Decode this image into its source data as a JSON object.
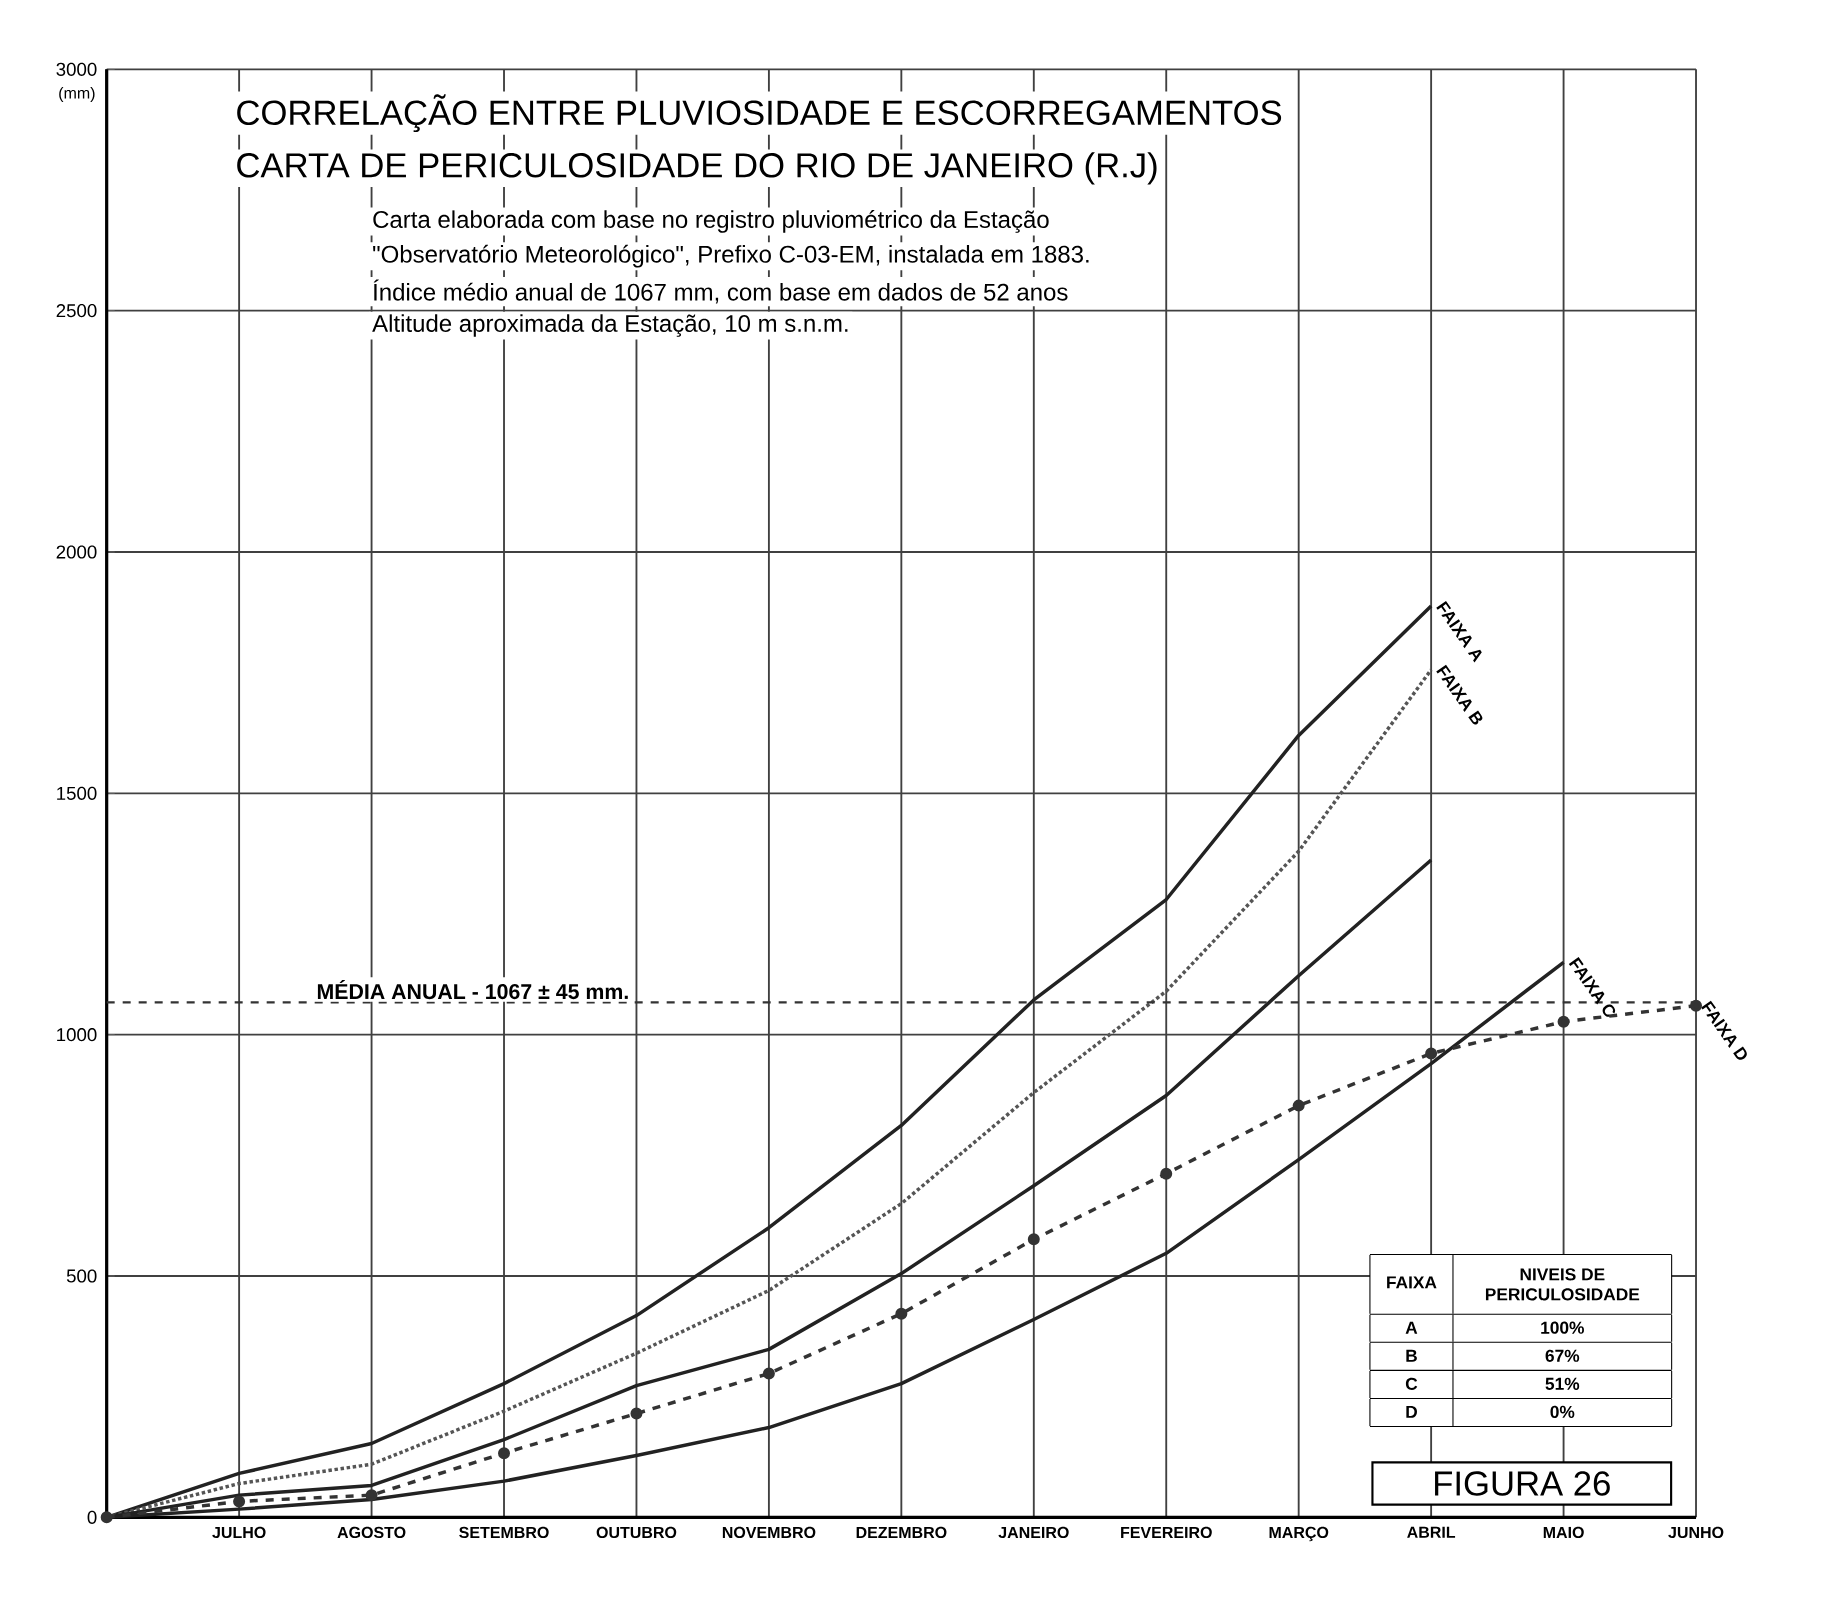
{
  "chart_data": {
    "type": "line",
    "title": "CORRELAÇÃO ENTRE PLUVIOSIDADE E ESCORREGAMENTOS",
    "subtitle": "CARTA DE PERICULOSIDADE DO RIO DE JANEIRO (R.J)",
    "ylabel": "(mm)",
    "categories": [
      null,
      "JULHO",
      "AGOSTO",
      "SETEMBRO",
      "OUTUBRO",
      "NOVEMBRO",
      "DEZEMBRO",
      "JANEIRO",
      "FEVEREIRO",
      "MARÇO",
      "ABRIL",
      "MAIO",
      "JUNHO"
    ],
    "ylim": [
      0,
      3000
    ],
    "yticks": [
      0,
      500,
      1000,
      1500,
      2000,
      2500,
      3000
    ],
    "grid": true,
    "series": [
      {
        "color": "#222222",
        "line_style": "solid",
        "marker": "none",
        "values": [
          0,
          91,
          153,
          277,
          418,
          600,
          812,
          1072,
          1280,
          1620,
          1888,
          null,
          null
        ]
      },
      {
        "color": "#555555",
        "line_style": "dotted",
        "marker": "none",
        "values": [
          0,
          70,
          110,
          220,
          340,
          470,
          650,
          880,
          1090,
          1380,
          1756,
          null,
          null
        ]
      },
      {
        "color": "#222222",
        "line_style": "solid",
        "marker": "none",
        "values": [
          0,
          46,
          66,
          161,
          273,
          348,
          505,
          687,
          874,
          1122,
          1362,
          null,
          null
        ]
      },
      {
        "color": "#222222",
        "line_style": "solid",
        "marker": "none",
        "values": [
          0,
          17,
          37,
          75,
          128,
          186,
          277,
          410,
          547,
          741,
          940,
          1150,
          null
        ]
      },
      {
        "color": "#333333",
        "line_style": "dashed",
        "marker": "circle",
        "values": [
          0,
          33,
          46,
          133,
          215,
          298,
          422,
          576,
          712,
          853,
          961,
          1027,
          1060
        ]
      }
    ],
    "ref_lines": [
      {
        "axis": "y",
        "value": 1067,
        "label": "MÉDIA ANUAL - 1067 ± 45 mm.",
        "color": "#333333",
        "line_style": "dashed"
      }
    ],
    "annotations": [
      "Carta elaborada com base no registro pluviométrico da Estação",
      "\"Observatório Meteorológico\", Prefixo C-03-EM, instalada em 1883.",
      "Índice médio anual de 1067 mm, com base em dados de 52 anos",
      "Altitude aproximada da Estação, 10 m s.n.m.",
      "FAIXA",
      "NIVEIS DE PERICULOSIDADE",
      "A",
      "100%",
      "B",
      "67%",
      "C",
      "51%",
      "D",
      "0%",
      "FIGURA 26",
      {
        "text": "FAIXA A",
        "x": "ABRIL",
        "y": 1888
      },
      {
        "text": "FAIXA B",
        "x": "ABRIL",
        "y": 1756
      },
      {
        "text": "FAIXA C",
        "x": "MAIO",
        "y": 1150
      },
      {
        "text": "FAIXA D",
        "x": "JUNHO",
        "y": 1060
      }
    ]
  }
}
